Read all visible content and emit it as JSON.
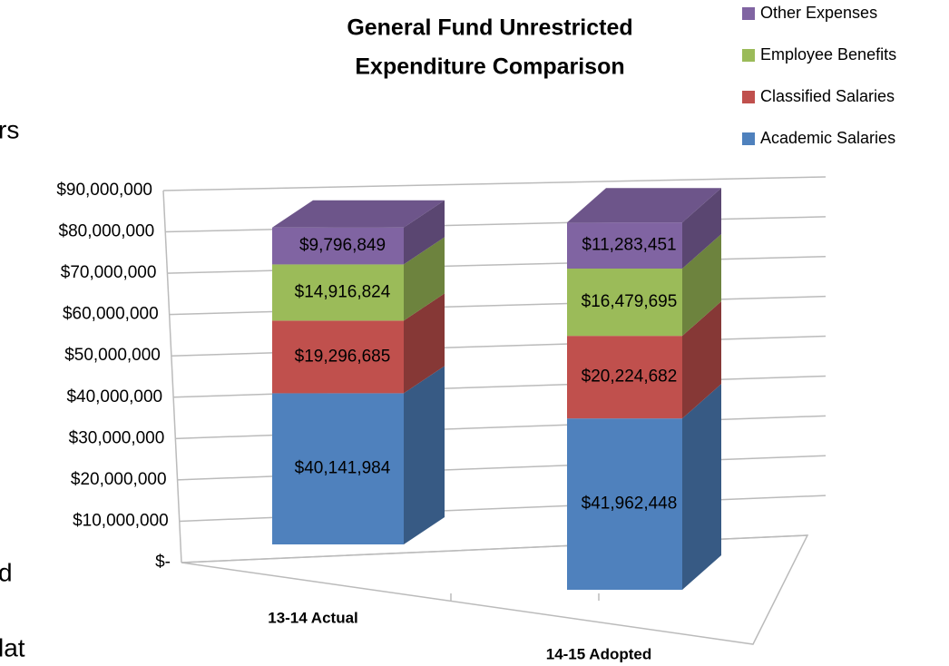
{
  "chart_data": {
    "type": "bar3d_stacked",
    "title": [
      "General Fund Unrestricted",
      "Expenditure Comparison"
    ],
    "categories": [
      "13-14 Actual",
      "14-15 Adopted"
    ],
    "series": [
      {
        "name": "Academic Salaries",
        "color": "#4f81bd",
        "values": [
          40141984,
          41962448
        ],
        "value_labels": [
          "$40,141,984",
          "$41,962,448"
        ]
      },
      {
        "name": "Classified Salaries",
        "color": "#c0504d",
        "values": [
          19296685,
          20224682
        ],
        "value_labels": [
          "$19,296,685",
          "$20,224,682"
        ]
      },
      {
        "name": "Employee Benefits",
        "color": "#9bbb59",
        "values": [
          14916824,
          16479695
        ],
        "value_labels": [
          "$14,916,824",
          "$16,479,695"
        ]
      },
      {
        "name": "Other Expenses",
        "color": "#8064a2",
        "values": [
          9796849,
          11283451
        ],
        "value_labels": [
          "$9,796,849",
          "$11,283,451"
        ]
      }
    ],
    "ylim": [
      0,
      90000000
    ],
    "yticks": [
      {
        "value": 0,
        "label": "$-"
      },
      {
        "value": 10000000,
        "label": "$10,000,000"
      },
      {
        "value": 20000000,
        "label": "$20,000,000"
      },
      {
        "value": 30000000,
        "label": "$30,000,000"
      },
      {
        "value": 40000000,
        "label": "$40,000,000"
      },
      {
        "value": 50000000,
        "label": "$50,000,000"
      },
      {
        "value": 60000000,
        "label": "$60,000,000"
      },
      {
        "value": 70000000,
        "label": "$70,000,000"
      },
      {
        "value": 80000000,
        "label": "$80,000,000"
      },
      {
        "value": 90000000,
        "label": "$90,000,000"
      }
    ],
    "grid": true,
    "legend": "top-right"
  },
  "background_text": [
    "rs",
    "d",
    "lat"
  ]
}
